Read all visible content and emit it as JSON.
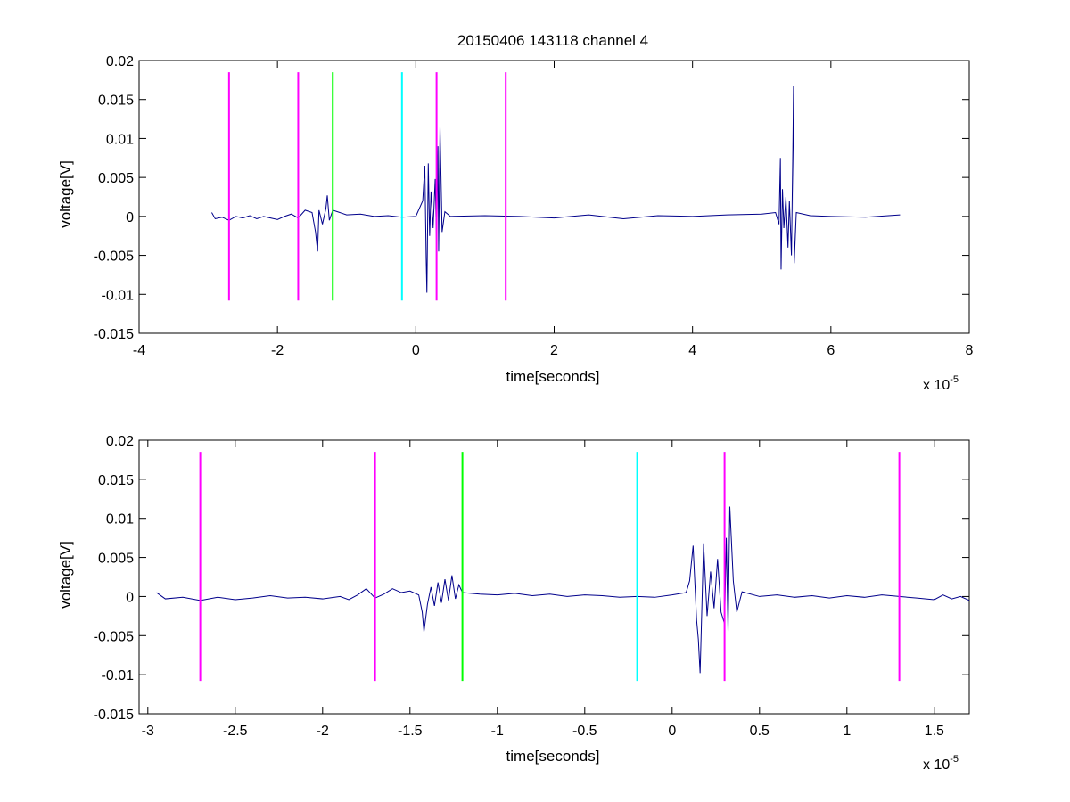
{
  "chart_data": [
    {
      "type": "line",
      "title": "20150406 143118 channel 4",
      "xlabel": "time[seconds]",
      "ylabel": "voltage[V]",
      "x_exponent_label": "x 10",
      "x_exponent": "-5",
      "xlim": [
        -4,
        8
      ],
      "ylim": [
        -0.015,
        0.02
      ],
      "xticks": [
        -4,
        -2,
        0,
        2,
        4,
        6,
        8
      ],
      "xtick_labels": [
        "-4",
        "-2",
        "0",
        "2",
        "4",
        "6",
        "8"
      ],
      "yticks": [
        -0.015,
        -0.01,
        -0.005,
        0,
        0.005,
        0.01,
        0.015,
        0.02
      ],
      "ytick_labels": [
        "-0.015",
        "-0.01",
        "-0.005",
        "0",
        "0.005",
        "0.01",
        "0.015",
        "0.02"
      ],
      "grid": false,
      "series": [
        {
          "color": "#00008b",
          "points": [
            [
              -2.95,
              0.0005
            ],
            [
              -2.9,
              -0.0003
            ],
            [
              -2.8,
              -0.0001
            ],
            [
              -2.7,
              -0.0005
            ],
            [
              -2.6,
              0.0
            ],
            [
              -2.5,
              -0.0002
            ],
            [
              -2.4,
              0.0001
            ],
            [
              -2.3,
              -0.0003
            ],
            [
              -2.2,
              0.0
            ],
            [
              -2.1,
              -0.0002
            ],
            [
              -2.0,
              -0.0004
            ],
            [
              -1.9,
              0.0
            ],
            [
              -1.8,
              0.0003
            ],
            [
              -1.7,
              -0.0002
            ],
            [
              -1.6,
              0.0008
            ],
            [
              -1.5,
              0.0005
            ],
            [
              -1.45,
              -0.002
            ],
            [
              -1.42,
              -0.0045
            ],
            [
              -1.4,
              0.0008
            ],
            [
              -1.35,
              -0.001
            ],
            [
              -1.3,
              0.001
            ],
            [
              -1.28,
              0.0027
            ],
            [
              -1.25,
              -0.0005
            ],
            [
              -1.2,
              0.0008
            ],
            [
              -1.0,
              0.0002
            ],
            [
              -0.8,
              0.0003
            ],
            [
              -0.6,
              0.0
            ],
            [
              -0.4,
              0.0001
            ],
            [
              -0.2,
              -0.0001
            ],
            [
              0.0,
              0.0
            ],
            [
              0.1,
              0.002
            ],
            [
              0.13,
              0.0065
            ],
            [
              0.15,
              -0.0055
            ],
            [
              0.16,
              -0.0098
            ],
            [
              0.18,
              0.0068
            ],
            [
              0.2,
              -0.0025
            ],
            [
              0.22,
              0.0032
            ],
            [
              0.25,
              -0.0015
            ],
            [
              0.28,
              0.0048
            ],
            [
              0.3,
              -0.0035
            ],
            [
              0.32,
              0.009
            ],
            [
              0.33,
              -0.0045
            ],
            [
              0.35,
              0.0115
            ],
            [
              0.38,
              -0.002
            ],
            [
              0.42,
              0.0006
            ],
            [
              0.5,
              0.0
            ],
            [
              1.0,
              0.0001
            ],
            [
              1.5,
              0.0
            ],
            [
              2.0,
              -0.0002
            ],
            [
              2.5,
              0.0002
            ],
            [
              3.0,
              -0.0003
            ],
            [
              3.5,
              0.0001
            ],
            [
              4.0,
              0.0
            ],
            [
              4.5,
              0.0002
            ],
            [
              5.0,
              0.0003
            ],
            [
              5.2,
              0.0005
            ],
            [
              5.25,
              -0.001
            ],
            [
              5.27,
              0.0075
            ],
            [
              5.28,
              -0.0068
            ],
            [
              5.3,
              0.0035
            ],
            [
              5.32,
              -0.0015
            ],
            [
              5.35,
              0.0025
            ],
            [
              5.38,
              -0.004
            ],
            [
              5.4,
              0.002
            ],
            [
              5.43,
              -0.005
            ],
            [
              5.45,
              0.0085
            ],
            [
              5.46,
              0.0167
            ],
            [
              5.47,
              -0.006
            ],
            [
              5.5,
              0.0005
            ],
            [
              5.7,
              0.0001
            ],
            [
              6.0,
              0.0
            ],
            [
              6.5,
              -0.0001
            ],
            [
              7.0,
              0.0002
            ]
          ]
        }
      ],
      "markers": [
        {
          "x": -2.7,
          "color": "#ff00ff"
        },
        {
          "x": -1.7,
          "color": "#ff00ff"
        },
        {
          "x": -1.2,
          "color": "#00ff00"
        },
        {
          "x": -0.2,
          "color": "#00ffff"
        },
        {
          "x": 0.3,
          "color": "#ff00ff"
        },
        {
          "x": 1.3,
          "color": "#ff00ff"
        }
      ],
      "marker_range": [
        -0.0108,
        0.0185
      ]
    },
    {
      "type": "line",
      "title": "",
      "xlabel": "time[seconds]",
      "ylabel": "voltage[V]",
      "x_exponent_label": "x 10",
      "x_exponent": "-5",
      "xlim": [
        -3.05,
        1.7
      ],
      "ylim": [
        -0.015,
        0.02
      ],
      "xticks": [
        -3,
        -2.5,
        -2,
        -1.5,
        -1,
        -0.5,
        0,
        0.5,
        1,
        1.5
      ],
      "xtick_labels": [
        "-3",
        "-2.5",
        "-2",
        "-1.5",
        "-1",
        "-0.5",
        "0",
        "0.5",
        "1",
        "1.5"
      ],
      "yticks": [
        -0.015,
        -0.01,
        -0.005,
        0,
        0.005,
        0.01,
        0.015,
        0.02
      ],
      "ytick_labels": [
        "-0.015",
        "-0.01",
        "-0.005",
        "0",
        "0.005",
        "0.01",
        "0.015",
        "0.02"
      ],
      "grid": false,
      "series": [
        {
          "color": "#00008b",
          "points": [
            [
              -2.95,
              0.0005
            ],
            [
              -2.9,
              -0.0003
            ],
            [
              -2.8,
              -0.0001
            ],
            [
              -2.7,
              -0.0005
            ],
            [
              -2.6,
              -0.0001
            ],
            [
              -2.5,
              -0.0004
            ],
            [
              -2.4,
              -0.0002
            ],
            [
              -2.3,
              0.0001
            ],
            [
              -2.2,
              -0.0002
            ],
            [
              -2.1,
              -0.0001
            ],
            [
              -2.0,
              -0.0003
            ],
            [
              -1.9,
              0.0
            ],
            [
              -1.85,
              -0.0004
            ],
            [
              -1.8,
              0.0002
            ],
            [
              -1.75,
              0.001
            ],
            [
              -1.7,
              -0.0002
            ],
            [
              -1.65,
              0.0003
            ],
            [
              -1.6,
              0.001
            ],
            [
              -1.55,
              0.0005
            ],
            [
              -1.5,
              0.0007
            ],
            [
              -1.45,
              0.0002
            ],
            [
              -1.43,
              -0.002
            ],
            [
              -1.42,
              -0.0045
            ],
            [
              -1.4,
              -0.001
            ],
            [
              -1.38,
              0.0012
            ],
            [
              -1.36,
              -0.0012
            ],
            [
              -1.34,
              0.0018
            ],
            [
              -1.32,
              -0.0008
            ],
            [
              -1.3,
              0.0022
            ],
            [
              -1.28,
              -0.0005
            ],
            [
              -1.26,
              0.0027
            ],
            [
              -1.24,
              -0.0003
            ],
            [
              -1.22,
              0.0015
            ],
            [
              -1.2,
              0.0005
            ],
            [
              -1.1,
              0.0003
            ],
            [
              -1.0,
              0.0002
            ],
            [
              -0.9,
              0.0004
            ],
            [
              -0.8,
              0.0001
            ],
            [
              -0.7,
              0.0003
            ],
            [
              -0.6,
              0.0
            ],
            [
              -0.5,
              0.0002
            ],
            [
              -0.4,
              0.0001
            ],
            [
              -0.3,
              -0.0001
            ],
            [
              -0.2,
              0.0
            ],
            [
              -0.1,
              -0.0001
            ],
            [
              0.0,
              0.0002
            ],
            [
              0.08,
              0.0005
            ],
            [
              0.1,
              0.002
            ],
            [
              0.12,
              0.0065
            ],
            [
              0.14,
              -0.003
            ],
            [
              0.15,
              -0.0055
            ],
            [
              0.16,
              -0.0098
            ],
            [
              0.18,
              0.0068
            ],
            [
              0.2,
              -0.0025
            ],
            [
              0.22,
              0.0032
            ],
            [
              0.24,
              -0.0015
            ],
            [
              0.26,
              0.0048
            ],
            [
              0.28,
              -0.002
            ],
            [
              0.3,
              -0.0035
            ],
            [
              0.31,
              0.0075
            ],
            [
              0.32,
              -0.0045
            ],
            [
              0.33,
              0.0115
            ],
            [
              0.35,
              0.002
            ],
            [
              0.37,
              -0.002
            ],
            [
              0.4,
              0.0006
            ],
            [
              0.5,
              0.0
            ],
            [
              0.6,
              0.0002
            ],
            [
              0.7,
              -0.0001
            ],
            [
              0.8,
              0.0001
            ],
            [
              0.9,
              -0.0002
            ],
            [
              1.0,
              0.0001
            ],
            [
              1.1,
              -0.0001
            ],
            [
              1.2,
              0.0002
            ],
            [
              1.3,
              0.0
            ],
            [
              1.4,
              -0.0002
            ],
            [
              1.5,
              -0.0004
            ],
            [
              1.55,
              0.0002
            ],
            [
              1.6,
              -0.0003
            ],
            [
              1.65,
              0.0
            ],
            [
              1.7,
              -0.0005
            ]
          ]
        }
      ],
      "markers": [
        {
          "x": -2.7,
          "color": "#ff00ff"
        },
        {
          "x": -1.7,
          "color": "#ff00ff"
        },
        {
          "x": -1.2,
          "color": "#00ff00"
        },
        {
          "x": -0.2,
          "color": "#00ffff"
        },
        {
          "x": 0.3,
          "color": "#ff00ff"
        },
        {
          "x": 1.3,
          "color": "#ff00ff"
        }
      ],
      "marker_range": [
        -0.0108,
        0.0185
      ]
    }
  ]
}
